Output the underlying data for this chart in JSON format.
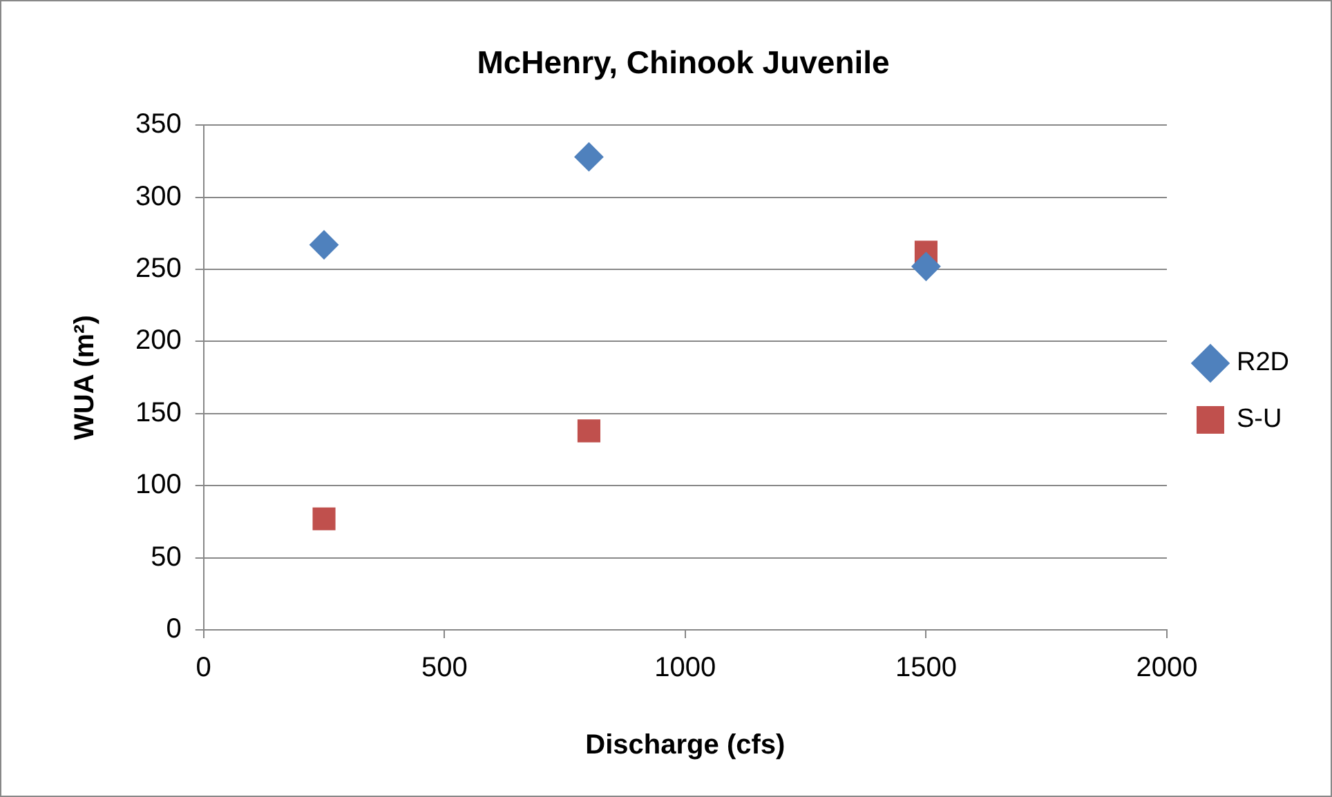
{
  "chart_data": {
    "type": "scatter",
    "title": "McHenry, Chinook Juvenile",
    "xlabel": "Discharge (cfs)",
    "ylabel": "WUA (m²)",
    "x": [
      250,
      800,
      1500
    ],
    "series": [
      {
        "name": "R2D",
        "color": "#4f81bd",
        "marker": "diamond",
        "values": [
          267,
          328,
          252
        ]
      },
      {
        "name": "S-U",
        "color": "#c0504d",
        "marker": "square",
        "values": [
          77,
          138,
          262
        ]
      }
    ],
    "xlim": [
      0,
      2000
    ],
    "xticks": [
      0,
      500,
      1000,
      1500,
      2000
    ],
    "ylim": [
      0,
      350
    ],
    "yticks": [
      0,
      50,
      100,
      150,
      200,
      250,
      300,
      350
    ],
    "grid": "y",
    "legend": "right"
  }
}
